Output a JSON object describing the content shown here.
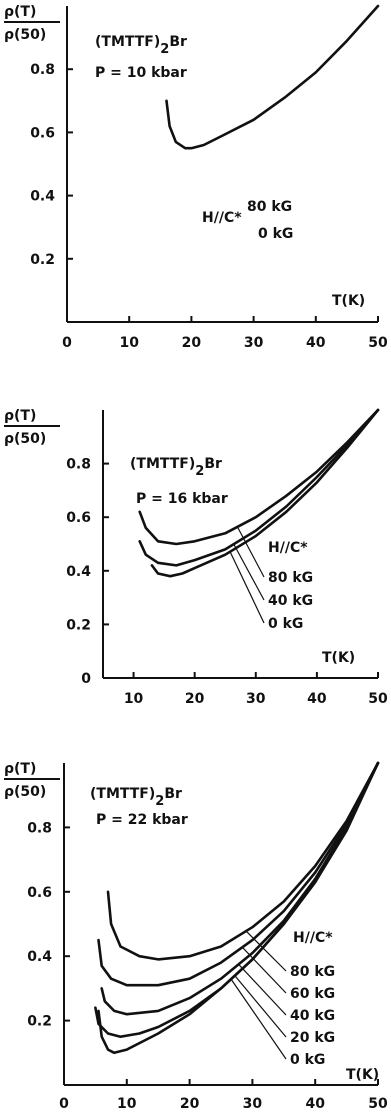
{
  "chart_data": [
    {
      "type": "line",
      "ylabel_num": "ρ(T)",
      "ylabel_den": "ρ(50)",
      "xlabel": "T(K)",
      "compound": "(TMTTF)",
      "compound_sub": "2",
      "compound_tail": "Br",
      "pressure": "P = 10 kbar",
      "field_label": "H//C*",
      "xlim": [
        0,
        50
      ],
      "ylim": [
        0,
        1.0
      ],
      "x_ticks": [
        0,
        10,
        20,
        30,
        40,
        50
      ],
      "y_ticks": [
        0.2,
        0.4,
        0.6,
        0.8
      ],
      "legend_entries": [
        "80 kG",
        "0 kG"
      ],
      "series": [
        {
          "name": "80 kG, 0 kG",
          "x": [
            16,
            16.5,
            17.5,
            19,
            20,
            22,
            25,
            30,
            35,
            40,
            45,
            50
          ],
          "y": [
            0.7,
            0.62,
            0.57,
            0.55,
            0.55,
            0.56,
            0.59,
            0.64,
            0.71,
            0.79,
            0.89,
            1.0
          ]
        }
      ]
    },
    {
      "type": "line",
      "ylabel_num": "ρ(T)",
      "ylabel_den": "ρ(50)",
      "xlabel": "T(K)",
      "compound": "(TMTTF)",
      "compound_sub": "2",
      "compound_tail": "Br",
      "pressure": "P = 16 kbar",
      "field_label": "H//C*",
      "xlim": [
        5,
        50
      ],
      "ylim": [
        0,
        1.0
      ],
      "x_ticks": [
        10,
        20,
        30,
        40,
        50
      ],
      "y_ticks": [
        0,
        0.2,
        0.4,
        0.6,
        0.8
      ],
      "series": [
        {
          "name": "80 kG",
          "x": [
            11,
            12,
            14,
            17,
            20,
            25,
            30,
            35,
            40,
            45,
            50
          ],
          "y": [
            0.62,
            0.56,
            0.51,
            0.5,
            0.51,
            0.54,
            0.6,
            0.68,
            0.77,
            0.88,
            1.0
          ]
        },
        {
          "name": "40 kG",
          "x": [
            11,
            12,
            14,
            17,
            20,
            25,
            30,
            35,
            40,
            45,
            50
          ],
          "y": [
            0.51,
            0.46,
            0.43,
            0.42,
            0.44,
            0.48,
            0.55,
            0.64,
            0.75,
            0.87,
            1.0
          ]
        },
        {
          "name": "0 kG",
          "x": [
            13,
            14,
            16,
            18,
            20,
            25,
            30,
            35,
            40,
            45,
            50
          ],
          "y": [
            0.42,
            0.39,
            0.38,
            0.39,
            0.41,
            0.46,
            0.53,
            0.62,
            0.73,
            0.86,
            1.0
          ]
        }
      ]
    },
    {
      "type": "line",
      "ylabel_num": "ρ(T)",
      "ylabel_den": "ρ(50)",
      "xlabel": "T(K)",
      "compound": "(TMTTF)",
      "compound_sub": "2",
      "compound_tail": "Br",
      "pressure": "P = 22 kbar",
      "field_label": "H//C*",
      "xlim": [
        0,
        50
      ],
      "ylim": [
        0,
        1.0
      ],
      "x_ticks": [
        0,
        10,
        20,
        30,
        40,
        50
      ],
      "y_ticks": [
        0.2,
        0.4,
        0.6,
        0.8
      ],
      "series": [
        {
          "name": "80 kG",
          "x": [
            7,
            7.5,
            9,
            12,
            15,
            20,
            25,
            30,
            35,
            40,
            45,
            50
          ],
          "y": [
            0.6,
            0.5,
            0.43,
            0.4,
            0.39,
            0.4,
            0.43,
            0.49,
            0.57,
            0.68,
            0.82,
            1.0
          ]
        },
        {
          "name": "60 kG",
          "x": [
            5.5,
            6,
            7.5,
            10,
            15,
            20,
            25,
            30,
            35,
            40,
            45,
            50
          ],
          "y": [
            0.45,
            0.37,
            0.33,
            0.31,
            0.31,
            0.33,
            0.38,
            0.45,
            0.54,
            0.66,
            0.81,
            1.0
          ]
        },
        {
          "name": "40 kG",
          "x": [
            6,
            6.5,
            8,
            10,
            15,
            20,
            25,
            30,
            35,
            40,
            45,
            50
          ],
          "y": [
            0.3,
            0.26,
            0.23,
            0.22,
            0.23,
            0.27,
            0.33,
            0.41,
            0.51,
            0.64,
            0.8,
            1.0
          ]
        },
        {
          "name": "20 kG",
          "x": [
            5,
            5.5,
            7,
            9,
            12,
            15,
            20,
            25,
            30,
            35,
            40,
            45,
            50
          ],
          "y": [
            0.24,
            0.19,
            0.16,
            0.15,
            0.16,
            0.18,
            0.23,
            0.3,
            0.39,
            0.5,
            0.63,
            0.8,
            1.0
          ]
        },
        {
          "name": "0 kG",
          "x": [
            5.5,
            6,
            7,
            8,
            10,
            12,
            15,
            20,
            25,
            30,
            35,
            40,
            45,
            50
          ],
          "y": [
            0.23,
            0.15,
            0.11,
            0.1,
            0.11,
            0.13,
            0.16,
            0.22,
            0.3,
            0.39,
            0.5,
            0.63,
            0.79,
            1.0
          ]
        }
      ]
    }
  ]
}
